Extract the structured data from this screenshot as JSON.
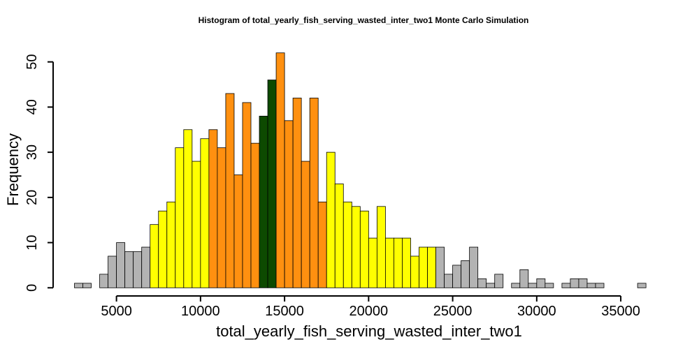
{
  "chart_data": {
    "type": "bar",
    "title": "Histogram of  total_yearly_fish_serving_wasted_inter_two1  Monte Carlo Simulation",
    "xlabel": "total_yearly_fish_serving_wasted_inter_two1",
    "ylabel": "Frequency",
    "bin_width": 500,
    "x_start": 2500,
    "xlim": [
      2500,
      37000
    ],
    "ylim": [
      0,
      52
    ],
    "x_ticks": [
      5000,
      10000,
      15000,
      20000,
      25000,
      30000,
      35000
    ],
    "y_ticks": [
      0,
      10,
      20,
      30,
      40,
      50
    ],
    "colors": {
      "outer": "#b3b3b3",
      "band_90": "#ffff00",
      "band_50": "#ff9010",
      "median": "#0d4a00"
    },
    "values": [
      1,
      1,
      0,
      3,
      7,
      10,
      8,
      8,
      9,
      14,
      17,
      19,
      31,
      35,
      28,
      33,
      35,
      31,
      43,
      25,
      41,
      32,
      38,
      46,
      52,
      37,
      42,
      28,
      42,
      19,
      30,
      23,
      19,
      18,
      17,
      11,
      18,
      11,
      11,
      11,
      7,
      9,
      9,
      9,
      3,
      5,
      6,
      9,
      2,
      1,
      3,
      0,
      1,
      4,
      1,
      2,
      1,
      0,
      1,
      2,
      2,
      1,
      1,
      0,
      0,
      0,
      0,
      1
    ],
    "bar_band": [
      "outer",
      "outer",
      "outer",
      "outer",
      "outer",
      "outer",
      "outer",
      "outer",
      "outer",
      "band_90",
      "band_90",
      "band_90",
      "band_90",
      "band_90",
      "band_90",
      "band_90",
      "band_50",
      "band_50",
      "band_50",
      "band_50",
      "band_50",
      "band_50",
      "median",
      "median",
      "band_50",
      "band_50",
      "band_50",
      "band_50",
      "band_50",
      "band_50",
      "band_90",
      "band_90",
      "band_90",
      "band_90",
      "band_90",
      "band_90",
      "band_90",
      "band_90",
      "band_90",
      "band_90",
      "band_90",
      "band_90",
      "band_90",
      "outer",
      "outer",
      "outer",
      "outer",
      "outer",
      "outer",
      "outer",
      "outer",
      "outer",
      "outer",
      "outer",
      "outer",
      "outer",
      "outer",
      "outer",
      "outer",
      "outer",
      "outer",
      "outer",
      "outer",
      "outer",
      "outer",
      "outer",
      "outer",
      "outer"
    ]
  }
}
